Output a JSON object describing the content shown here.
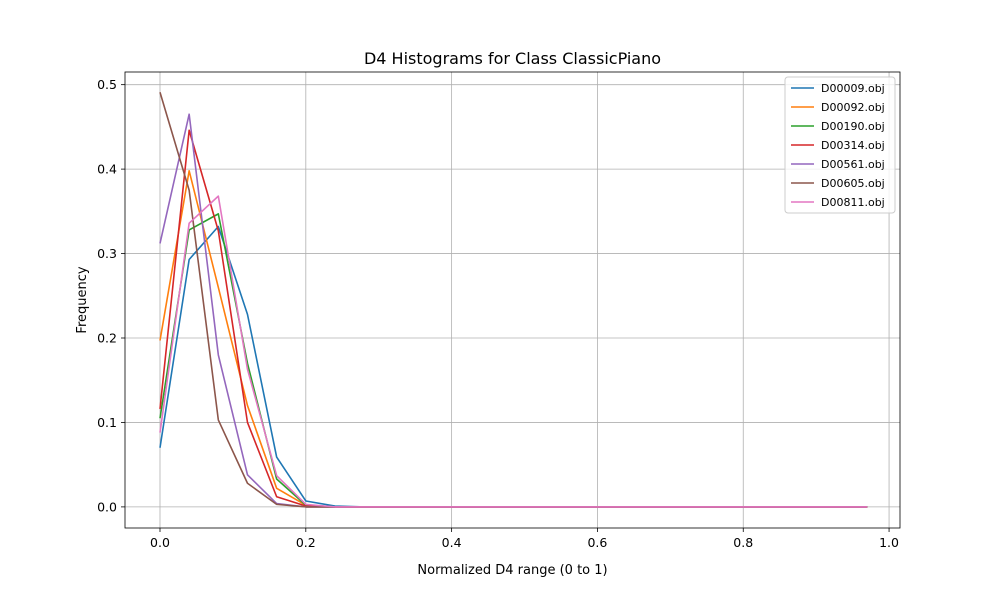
{
  "chart_data": {
    "type": "line",
    "title": "D4 Histograms for Class ClassicPiano",
    "xlabel": "Normalized D4 range (0 to 1)",
    "ylabel": "Frequency",
    "xlim": [
      -0.048,
      1.015
    ],
    "ylim": [
      -0.025,
      0.515
    ],
    "xticks": [
      0.0,
      0.2,
      0.4,
      0.6,
      0.8,
      1.0
    ],
    "xtick_labels": [
      "0.0",
      "0.2",
      "0.4",
      "0.6",
      "0.8",
      "1.0"
    ],
    "yticks": [
      0.0,
      0.1,
      0.2,
      0.3,
      0.4,
      0.5
    ],
    "ytick_labels": [
      "0.0",
      "0.1",
      "0.2",
      "0.3",
      "0.4",
      "0.5"
    ],
    "grid": true,
    "legend_position": "top-right",
    "x": [
      0.0,
      0.04,
      0.08,
      0.12,
      0.16,
      0.2,
      0.24,
      0.28,
      0.32,
      0.36,
      0.4,
      0.44,
      0.48,
      0.52,
      0.56,
      0.6,
      0.64,
      0.68,
      0.72,
      0.76,
      0.8,
      0.84,
      0.88,
      0.92,
      0.97
    ],
    "series": [
      {
        "name": "D00009.obj",
        "color": "#1f77b4",
        "values": [
          0.07,
          0.293,
          0.332,
          0.228,
          0.059,
          0.007,
          0.001,
          0,
          0,
          0,
          0,
          0,
          0,
          0,
          0,
          0,
          0,
          0,
          0,
          0,
          0,
          0,
          0,
          0,
          0
        ]
      },
      {
        "name": "D00092.obj",
        "color": "#ff7f0e",
        "values": [
          0.197,
          0.398,
          0.26,
          0.12,
          0.022,
          0.002,
          0,
          0,
          0,
          0,
          0,
          0,
          0,
          0,
          0,
          0,
          0,
          0,
          0,
          0,
          0,
          0,
          0,
          0,
          0
        ]
      },
      {
        "name": "D00190.obj",
        "color": "#2ca02c",
        "values": [
          0.105,
          0.328,
          0.347,
          0.17,
          0.033,
          0.002,
          0,
          0,
          0,
          0,
          0,
          0,
          0,
          0,
          0,
          0,
          0,
          0,
          0,
          0,
          0,
          0,
          0,
          0,
          0
        ]
      },
      {
        "name": "D00314.obj",
        "color": "#d62728",
        "values": [
          0.116,
          0.446,
          0.327,
          0.1,
          0.012,
          0.001,
          0,
          0,
          0,
          0,
          0,
          0,
          0,
          0,
          0,
          0,
          0,
          0,
          0,
          0,
          0,
          0,
          0,
          0,
          0
        ]
      },
      {
        "name": "D00561.obj",
        "color": "#9467bd",
        "values": [
          0.312,
          0.465,
          0.18,
          0.038,
          0.004,
          0,
          0,
          0,
          0,
          0,
          0,
          0,
          0,
          0,
          0,
          0,
          0,
          0,
          0,
          0,
          0,
          0,
          0,
          0,
          0
        ]
      },
      {
        "name": "D00605.obj",
        "color": "#8c564b",
        "values": [
          0.491,
          0.375,
          0.103,
          0.028,
          0.003,
          0,
          0,
          0,
          0,
          0,
          0,
          0,
          0,
          0,
          0,
          0,
          0,
          0,
          0,
          0,
          0,
          0,
          0,
          0,
          0
        ]
      },
      {
        "name": "D00811.obj",
        "color": "#e377c2",
        "values": [
          0.088,
          0.336,
          0.368,
          0.163,
          0.037,
          0.003,
          0,
          0,
          0,
          0,
          0,
          0,
          0,
          0,
          0,
          0,
          0,
          0,
          0,
          0,
          0,
          0,
          0,
          0,
          0
        ]
      }
    ]
  }
}
